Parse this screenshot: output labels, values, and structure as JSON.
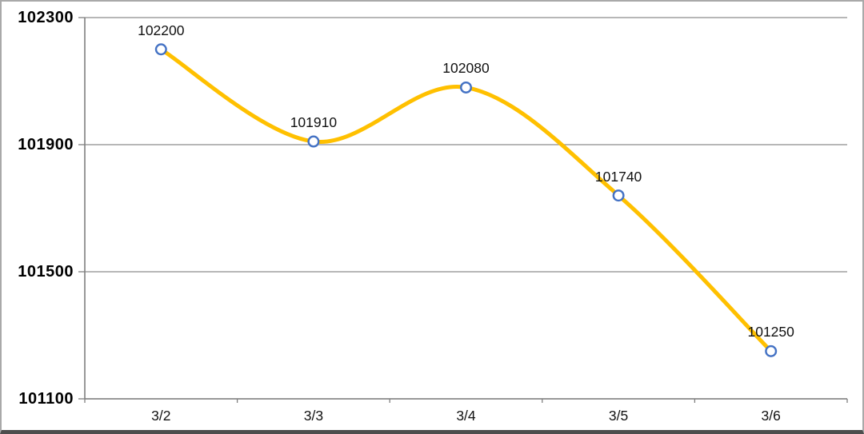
{
  "chart_data": {
    "type": "line",
    "smooth": true,
    "title": "",
    "xlabel": "",
    "ylabel": "",
    "legend": "none",
    "grid": "horizontal",
    "categories": [
      "3/2",
      "3/3",
      "3/4",
      "3/5",
      "3/6"
    ],
    "series": [
      {
        "values": [
          102200,
          101910,
          102080,
          101740,
          101250
        ]
      }
    ],
    "data_labels": [
      "102200",
      "101910",
      "102080",
      "101740",
      "101250"
    ],
    "ytick_labels": [
      "102300",
      "101900",
      "101500",
      "101100"
    ],
    "ytick_values": [
      102300,
      101900,
      101500,
      101100
    ],
    "ylim": [
      101100,
      102300
    ],
    "colors": {
      "line": "#FFC000",
      "marker_fill": "#FFFFFF",
      "marker_stroke": "#4472C4",
      "gridline": "#8C8C8C",
      "axis": "#7F7F7F",
      "text": "#000000"
    }
  }
}
